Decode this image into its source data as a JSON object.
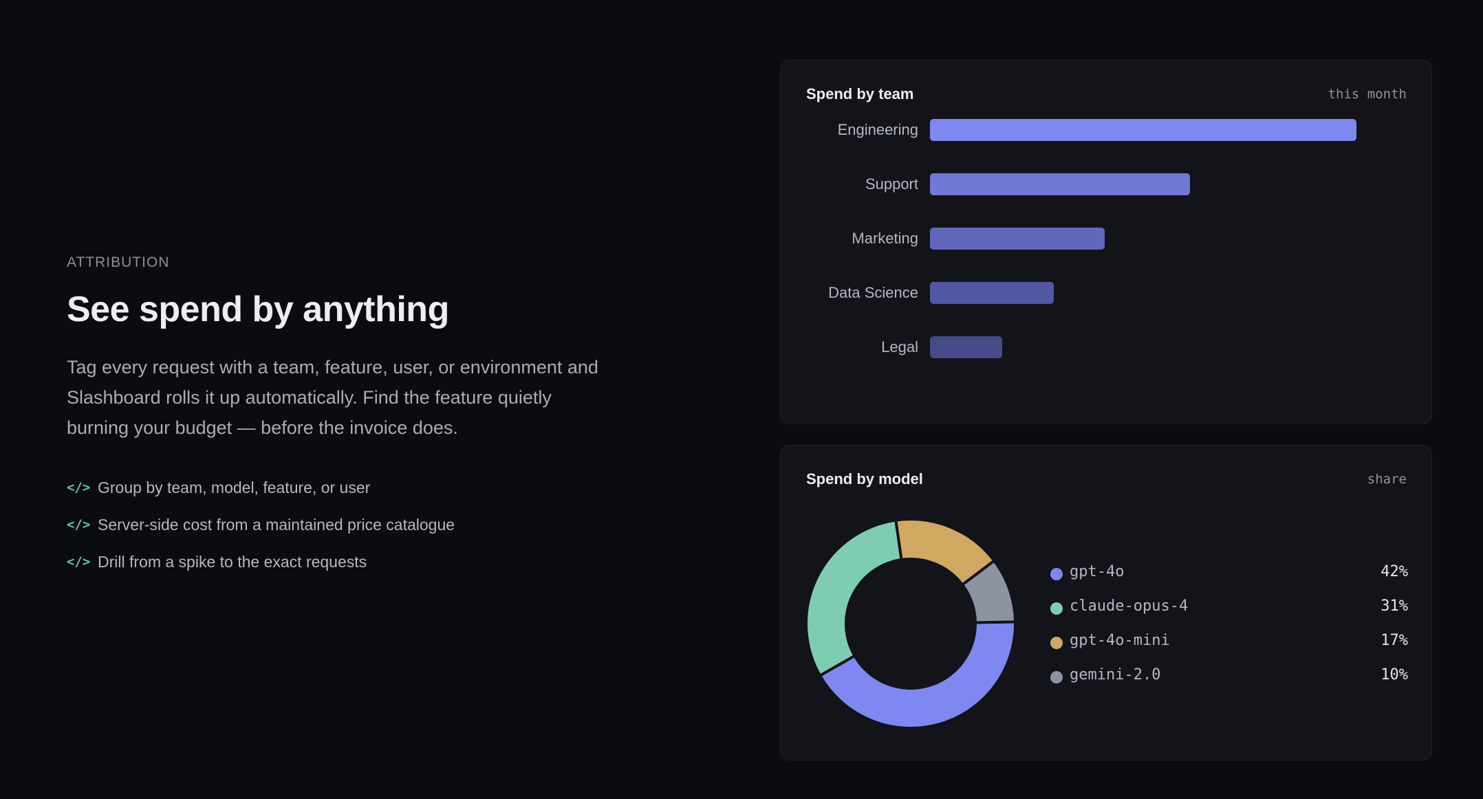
{
  "hero": {
    "eyebrow": "ATTRIBUTION",
    "title": "See spend by anything",
    "description": "Tag every request with a team, feature, user, or environment and Slashboard rolls it up automatically. Find the feature quietly burning your budget — before the invoice does.",
    "bullet_icon": "code-brackets-icon",
    "bullet_icon_glyph": "</>",
    "bullets": [
      "Group by team, model, feature, or user",
      "Server-side cost from a maintained price catalogue",
      "Drill from a spike to the exact requests"
    ],
    "accent_color": "#5fc8a5"
  },
  "team_card": {
    "title": "Spend by team",
    "meta": "this month"
  },
  "model_card": {
    "title": "Spend by model",
    "meta": "share"
  },
  "chart_data": [
    {
      "type": "bar",
      "orientation": "horizontal",
      "title": "Spend by team",
      "categories": [
        "Engineering",
        "Support",
        "Marketing",
        "Data Science",
        "Legal"
      ],
      "values": [
        100,
        61,
        41,
        29,
        17
      ],
      "colors": [
        "#7f88f0",
        "#7079d6",
        "#6068bd",
        "#5259a3",
        "#454a88"
      ],
      "grid": false
    },
    {
      "type": "pie",
      "style": "donut",
      "title": "Spend by model",
      "categories": [
        "gpt-4o",
        "claude-opus-4",
        "gpt-4o-mini",
        "gemini-2.0"
      ],
      "values": [
        42,
        31,
        17,
        10
      ],
      "labels": [
        "42%",
        "31%",
        "17%",
        "10%"
      ],
      "colors": [
        "#7f88f0",
        "#7ecdb3",
        "#d1a862",
        "#8e93a1"
      ],
      "legend": "right"
    }
  ]
}
